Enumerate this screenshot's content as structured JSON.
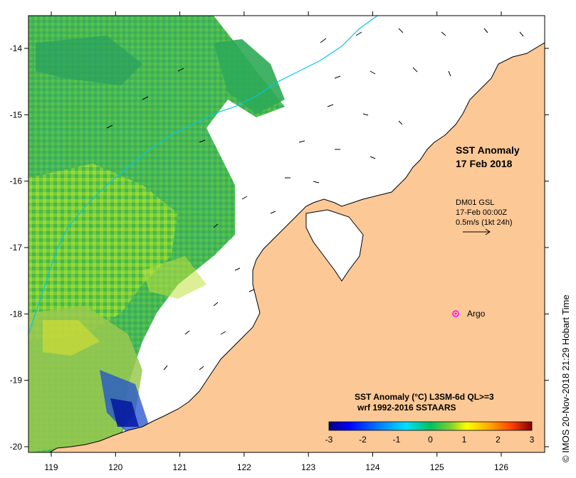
{
  "map": {
    "title_line1": "SST Anomaly",
    "title_line2": "17 Feb 2018",
    "wind": {
      "line1": "DM01 GSL",
      "line2": "17-Feb 00:00Z",
      "line3": "0.5m/s (1kt 24h)"
    },
    "argo_label": "Argo",
    "colorbar": {
      "title_line1": "SST Anomaly (°C) L3SM-6d QL>=3",
      "title_line2": "wrf 1992-2016 SSTAARS",
      "ticks": [
        "-3",
        "-2",
        "-1",
        "0",
        "1",
        "2",
        "3"
      ],
      "colors": [
        "#000080",
        "#0000ff",
        "#0080ff",
        "#00e0ff",
        "#00c060",
        "#40c040",
        "#a0e020",
        "#ffff00",
        "#ffb000",
        "#ff6000",
        "#c00000",
        "#800000"
      ]
    },
    "credit": "© IMOS 20-Nov-2018 21:29 Hobart Time",
    "x_ticks": [
      "119",
      "120",
      "121",
      "122",
      "123",
      "124",
      "125",
      "126"
    ],
    "y_ticks": [
      "-14",
      "-15",
      "-16",
      "-17",
      "-18",
      "-19",
      "-20"
    ],
    "colors": {
      "land": "#fbc896",
      "ocean": "#ffffff",
      "sst_main": "#3cb44b",
      "contour": "#00c8e8",
      "argo": "#ff00ff"
    }
  }
}
